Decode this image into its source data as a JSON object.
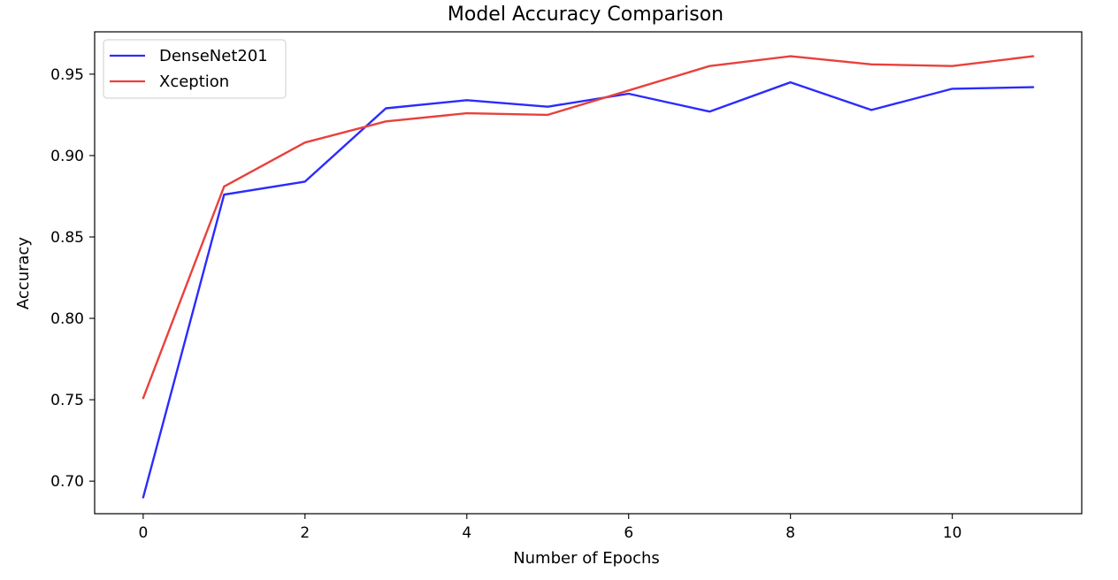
{
  "chart_data": {
    "type": "line",
    "title": "Model Accuracy Comparison",
    "xlabel": "Number of Epochs",
    "ylabel": "Accuracy",
    "xlim": [
      -0.6,
      11.6
    ],
    "ylim": [
      0.68,
      0.976
    ],
    "xticks": [
      0,
      2,
      4,
      6,
      8,
      10
    ],
    "yticks": [
      0.7,
      0.75,
      0.8,
      0.85,
      0.9,
      0.95
    ],
    "grid": false,
    "legend_position": "top-left",
    "x": [
      0,
      1,
      2,
      3,
      4,
      5,
      6,
      7,
      8,
      9,
      10,
      11
    ],
    "series": [
      {
        "name": "DenseNet201",
        "color": "#2b2bff",
        "values": [
          0.69,
          0.876,
          0.884,
          0.929,
          0.934,
          0.93,
          0.938,
          0.927,
          0.945,
          0.928,
          0.941,
          0.942
        ]
      },
      {
        "name": "Xception",
        "color": "#e8413c",
        "values": [
          0.751,
          0.881,
          0.908,
          0.921,
          0.926,
          0.925,
          0.94,
          0.955,
          0.961,
          0.956,
          0.955,
          0.961
        ]
      }
    ]
  }
}
